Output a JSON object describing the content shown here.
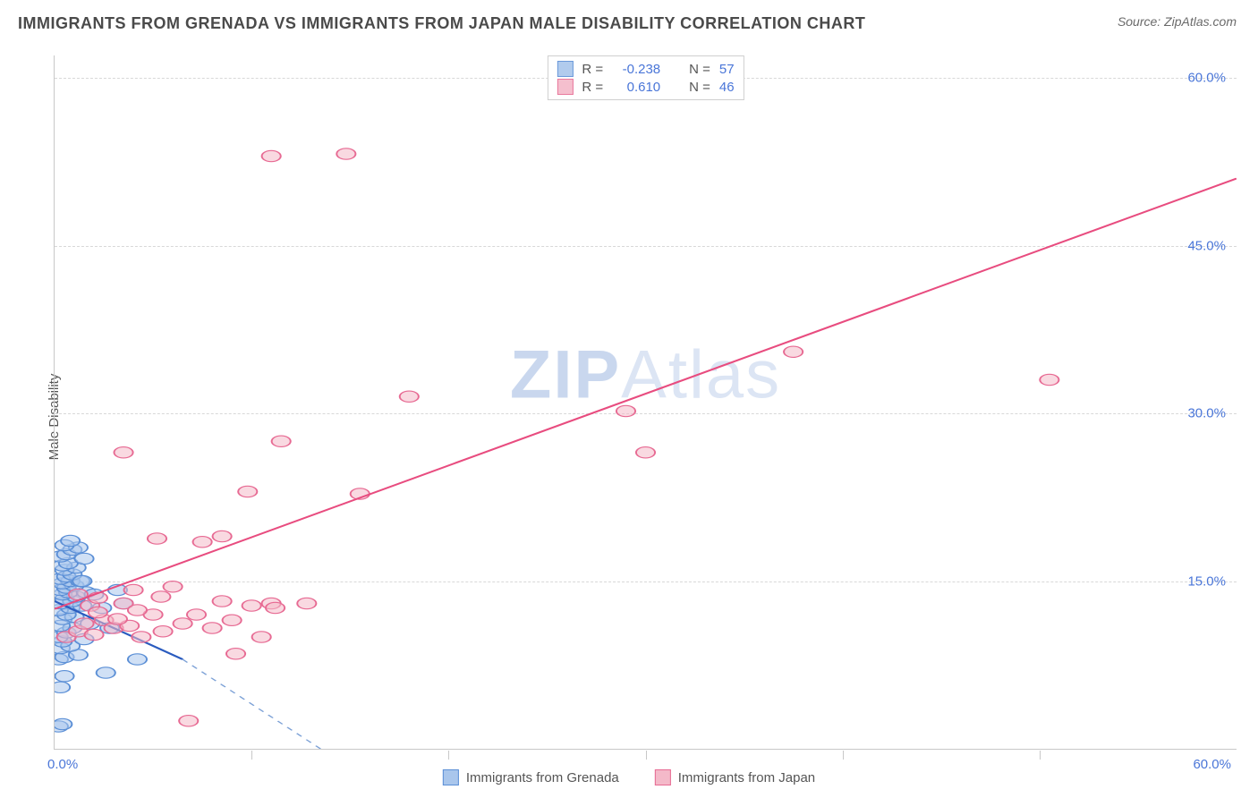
{
  "title": "IMMIGRANTS FROM GRENADA VS IMMIGRANTS FROM JAPAN MALE DISABILITY CORRELATION CHART",
  "source_label": "Source:",
  "source_value": "ZipAtlas.com",
  "ylabel": "Male Disability",
  "watermark": {
    "bold": "ZIP",
    "light": "Atlas"
  },
  "chart": {
    "type": "scatter",
    "xlim": [
      0,
      60
    ],
    "ylim": [
      0,
      62
    ],
    "x_origin_label": "0.0%",
    "x_max_label": "60.0%",
    "y_ticks": [
      {
        "v": 15,
        "label": "15.0%"
      },
      {
        "v": 30,
        "label": "30.0%"
      },
      {
        "v": 45,
        "label": "45.0%"
      },
      {
        "v": 60,
        "label": "60.0%"
      }
    ],
    "x_minor_ticks": [
      10,
      20,
      30,
      40,
      50
    ],
    "grid_color": "#d8d8d8",
    "background_color": "#ffffff",
    "marker_radius": 8,
    "marker_stroke_width": 1.5,
    "series": [
      {
        "id": "grenada",
        "label": "Immigrants from Grenada",
        "fill": "#a9c6ec",
        "stroke": "#5b8fd6",
        "fill_opacity": 0.55,
        "R": "-0.238",
        "N": "57",
        "trend": {
          "x1": 0,
          "y1": 13.2,
          "x2": 6.5,
          "y2": 8.0,
          "color": "#2a5bbf",
          "width": 2.4
        },
        "trend_dash": {
          "x1": 6.5,
          "y1": 8.0,
          "x2": 13.5,
          "y2": 0.0,
          "color": "#7ba0d6",
          "width": 1.4
        },
        "points": [
          [
            0.2,
            2.0
          ],
          [
            0.4,
            2.2
          ],
          [
            0.3,
            5.5
          ],
          [
            0.5,
            6.5
          ],
          [
            2.6,
            6.8
          ],
          [
            0.2,
            8.0
          ],
          [
            0.5,
            8.2
          ],
          [
            1.2,
            8.4
          ],
          [
            0.3,
            9.0
          ],
          [
            0.8,
            9.2
          ],
          [
            0.4,
            9.6
          ],
          [
            1.5,
            9.8
          ],
          [
            0.2,
            10.0
          ],
          [
            0.6,
            10.4
          ],
          [
            0.9,
            10.8
          ],
          [
            0.3,
            11.0
          ],
          [
            1.8,
            11.2
          ],
          [
            0.4,
            11.6
          ],
          [
            1.0,
            11.8
          ],
          [
            0.6,
            12.0
          ],
          [
            0.2,
            12.4
          ],
          [
            0.8,
            12.6
          ],
          [
            1.4,
            12.8
          ],
          [
            0.3,
            13.0
          ],
          [
            0.9,
            13.2
          ],
          [
            0.5,
            13.4
          ],
          [
            1.1,
            13.6
          ],
          [
            0.4,
            13.8
          ],
          [
            0.7,
            14.0
          ],
          [
            1.6,
            14.0
          ],
          [
            0.3,
            14.2
          ],
          [
            0.6,
            14.4
          ],
          [
            1.0,
            14.6
          ],
          [
            0.4,
            14.8
          ],
          [
            0.8,
            15.0
          ],
          [
            1.3,
            15.0
          ],
          [
            0.3,
            15.2
          ],
          [
            0.6,
            15.4
          ],
          [
            0.9,
            15.6
          ],
          [
            0.5,
            16.0
          ],
          [
            1.1,
            16.2
          ],
          [
            0.4,
            16.4
          ],
          [
            0.7,
            16.6
          ],
          [
            1.5,
            17.0
          ],
          [
            0.3,
            17.2
          ],
          [
            0.6,
            17.4
          ],
          [
            0.9,
            17.8
          ],
          [
            1.2,
            18.0
          ],
          [
            0.5,
            18.2
          ],
          [
            0.8,
            18.6
          ],
          [
            1.4,
            15.0
          ],
          [
            2.0,
            13.8
          ],
          [
            2.4,
            12.6
          ],
          [
            3.2,
            14.2
          ],
          [
            2.8,
            10.8
          ],
          [
            3.5,
            13.0
          ],
          [
            4.2,
            8.0
          ]
        ]
      },
      {
        "id": "japan",
        "label": "Immigrants from Japan",
        "fill": "#f4b9c9",
        "stroke": "#e76a93",
        "fill_opacity": 0.55,
        "R": "0.610",
        "N": "46",
        "trend": {
          "x1": 0,
          "y1": 12.5,
          "x2": 60,
          "y2": 51.0,
          "color": "#e84c7f",
          "width": 2.4
        },
        "points": [
          [
            0.6,
            10.0
          ],
          [
            1.2,
            10.5
          ],
          [
            1.5,
            11.2
          ],
          [
            2.0,
            10.2
          ],
          [
            1.8,
            12.8
          ],
          [
            2.5,
            11.5
          ],
          [
            3.0,
            10.8
          ],
          [
            2.2,
            13.5
          ],
          [
            3.5,
            13.0
          ],
          [
            3.8,
            11.0
          ],
          [
            4.0,
            14.2
          ],
          [
            4.4,
            10.0
          ],
          [
            5.0,
            12.0
          ],
          [
            5.5,
            10.5
          ],
          [
            6.0,
            14.5
          ],
          [
            6.5,
            11.2
          ],
          [
            7.5,
            18.5
          ],
          [
            8.0,
            10.8
          ],
          [
            8.5,
            13.2
          ],
          [
            9.2,
            8.5
          ],
          [
            10.0,
            12.8
          ],
          [
            10.5,
            10.0
          ],
          [
            11.0,
            13.0
          ],
          [
            11.2,
            12.6
          ],
          [
            6.8,
            2.5
          ],
          [
            3.5,
            26.5
          ],
          [
            5.2,
            18.8
          ],
          [
            8.5,
            19.0
          ],
          [
            9.8,
            23.0
          ],
          [
            11.5,
            27.5
          ],
          [
            12.8,
            13.0
          ],
          [
            15.5,
            22.8
          ],
          [
            18.0,
            31.5
          ],
          [
            29.0,
            30.2
          ],
          [
            30.0,
            26.5
          ],
          [
            37.5,
            35.5
          ],
          [
            50.5,
            33.0
          ],
          [
            11.0,
            53.0
          ],
          [
            14.8,
            53.2
          ],
          [
            1.2,
            13.8
          ],
          [
            2.2,
            12.2
          ],
          [
            3.2,
            11.6
          ],
          [
            4.2,
            12.4
          ],
          [
            5.4,
            13.6
          ],
          [
            7.2,
            12.0
          ],
          [
            9.0,
            11.5
          ]
        ]
      }
    ]
  },
  "legend_top_labels": {
    "R": "R =",
    "N": "N ="
  },
  "legend_bottom": [
    {
      "series": "grenada"
    },
    {
      "series": "japan"
    }
  ]
}
